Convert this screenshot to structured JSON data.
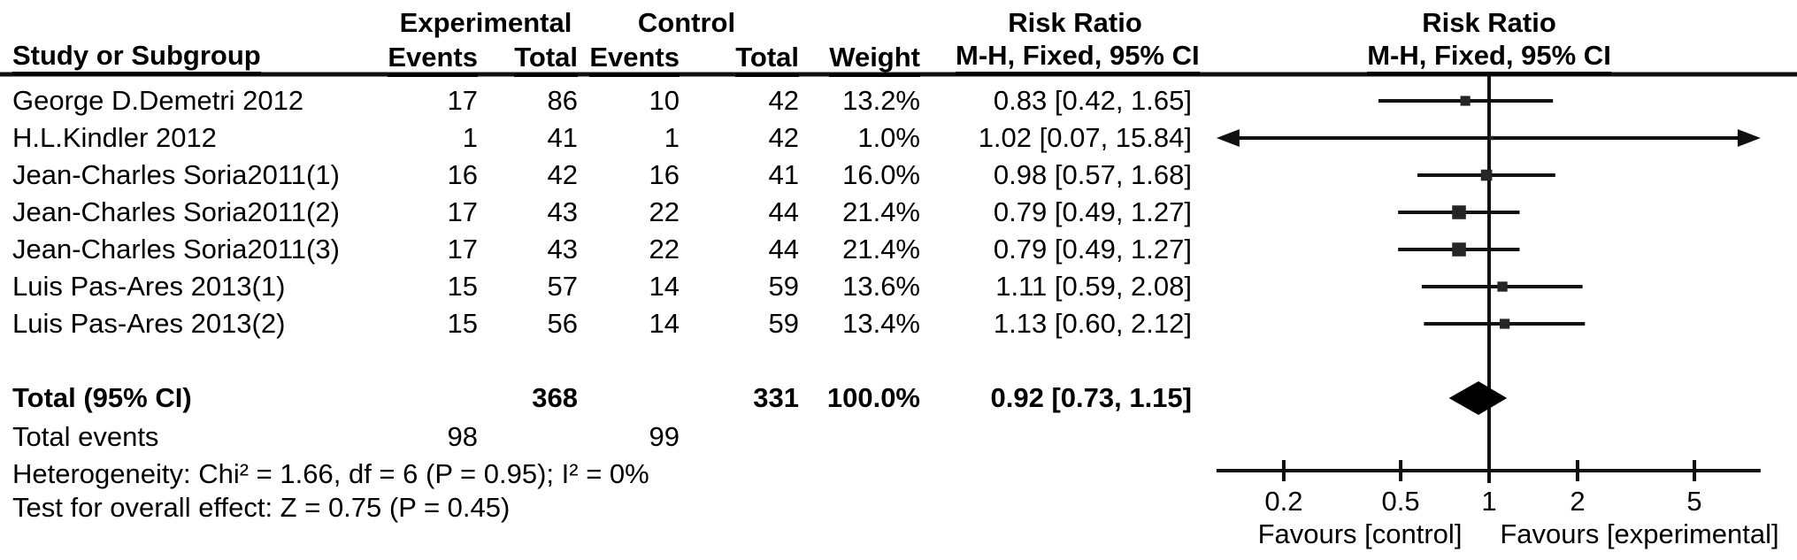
{
  "headers": {
    "group_row": {
      "experimental": "Experimental",
      "control": "Control",
      "risk_ratio_table": "Risk Ratio",
      "risk_ratio_plot": "Risk Ratio"
    },
    "column_row": {
      "study": "Study or Subgroup",
      "exp_events": "Events",
      "exp_total": "Total",
      "ctrl_events": "Events",
      "ctrl_total": "Total",
      "weight": "Weight",
      "mh_table": "M-H, Fixed, 95% CI",
      "mh_plot": "M-H, Fixed, 95% CI"
    }
  },
  "chart_data": {
    "type": "forest",
    "effect_measure": "Risk Ratio",
    "method": "M-H, Fixed, 95% CI",
    "x_scale": "log",
    "xlim": [
      0.118,
      8.4
    ],
    "x_ticks": [
      0.2,
      0.5,
      1,
      2,
      5
    ],
    "null_line": 1,
    "favours_left": "Favours [control]",
    "favours_right": "Favours [experimental]",
    "studies": [
      {
        "name": "George D.Demetri 2012",
        "exp_events": "17",
        "exp_total": "86",
        "ctrl_events": "10",
        "ctrl_total": "42",
        "weight": "13.2%",
        "weight_pct": 13.2,
        "rr": 0.83,
        "ci_low": 0.42,
        "ci_high": 1.65,
        "rr_ci_text": "0.83 [0.42, 1.65]"
      },
      {
        "name": "H.L.Kindler 2012",
        "exp_events": "1",
        "exp_total": "41",
        "ctrl_events": "1",
        "ctrl_total": "42",
        "weight": "1.0%",
        "weight_pct": 1.0,
        "rr": 1.02,
        "ci_low": 0.07,
        "ci_high": 15.84,
        "rr_ci_text": "1.02 [0.07, 15.84]"
      },
      {
        "name": "Jean-Charles Soria2011(1)",
        "exp_events": "16",
        "exp_total": "42",
        "ctrl_events": "16",
        "ctrl_total": "41",
        "weight": "16.0%",
        "weight_pct": 16.0,
        "rr": 0.98,
        "ci_low": 0.57,
        "ci_high": 1.68,
        "rr_ci_text": "0.98 [0.57, 1.68]"
      },
      {
        "name": "Jean-Charles Soria2011(2)",
        "exp_events": "17",
        "exp_total": "43",
        "ctrl_events": "22",
        "ctrl_total": "44",
        "weight": "21.4%",
        "weight_pct": 21.4,
        "rr": 0.79,
        "ci_low": 0.49,
        "ci_high": 1.27,
        "rr_ci_text": "0.79 [0.49, 1.27]"
      },
      {
        "name": "Jean-Charles Soria2011(3)",
        "exp_events": "17",
        "exp_total": "43",
        "ctrl_events": "22",
        "ctrl_total": "44",
        "weight": "21.4%",
        "weight_pct": 21.4,
        "rr": 0.79,
        "ci_low": 0.49,
        "ci_high": 1.27,
        "rr_ci_text": "0.79 [0.49, 1.27]"
      },
      {
        "name": "Luis Pas-Ares 2013(1)",
        "exp_events": "15",
        "exp_total": "57",
        "ctrl_events": "14",
        "ctrl_total": "59",
        "weight": "13.6%",
        "weight_pct": 13.6,
        "rr": 1.11,
        "ci_low": 0.59,
        "ci_high": 2.08,
        "rr_ci_text": "1.11 [0.59, 2.08]"
      },
      {
        "name": "Luis Pas-Ares 2013(2)",
        "exp_events": "15",
        "exp_total": "56",
        "ctrl_events": "14",
        "ctrl_total": "59",
        "weight": "13.4%",
        "weight_pct": 13.4,
        "rr": 1.13,
        "ci_low": 0.6,
        "ci_high": 2.12,
        "rr_ci_text": "1.13 [0.60, 2.12]"
      }
    ],
    "total": {
      "label": "Total (95% CI)",
      "exp_total": "368",
      "ctrl_total": "331",
      "weight": "100.0%",
      "rr": 0.92,
      "ci_low": 0.73,
      "ci_high": 1.15,
      "rr_ci_text": "0.92 [0.73, 1.15]"
    },
    "total_events": {
      "label": "Total events",
      "exp": "98",
      "ctrl": "99"
    },
    "heterogeneity": "Heterogeneity: Chi² = 1.66, df = 6 (P = 0.95); I² = 0%",
    "overall_effect": "Test for overall effect: Z = 0.75 (P = 0.45)",
    "marker_color": "#262626",
    "line_color": "#111111"
  }
}
